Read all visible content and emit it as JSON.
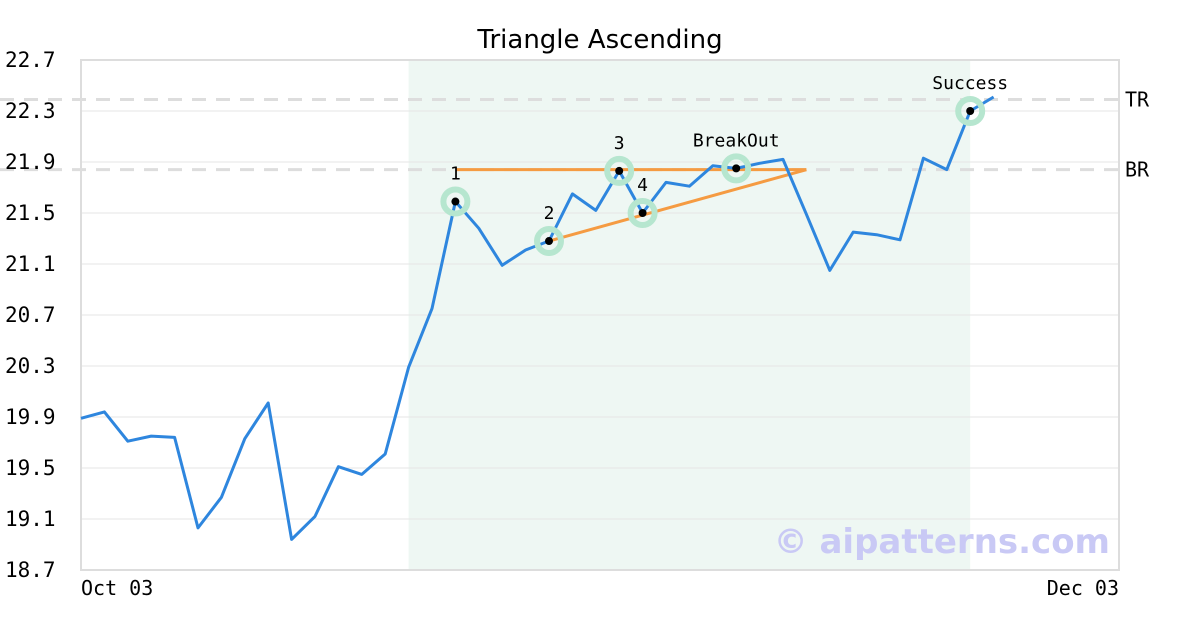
{
  "chart_data": {
    "type": "line",
    "title": "Triangle Ascending",
    "xlabel": "",
    "ylabel": "",
    "ylim": [
      18.7,
      22.7
    ],
    "yticks": [
      "22.7",
      "22.3",
      "21.9",
      "21.5",
      "21.1",
      "20.7",
      "20.3",
      "19.9",
      "19.5",
      "19.1",
      "18.7"
    ],
    "x_tick_labels": [
      "Oct 03",
      "Dec 03"
    ],
    "grid": "horizontal",
    "series": [
      {
        "values": [
          19.89,
          19.94,
          19.71,
          19.75,
          19.74,
          19.03,
          19.27,
          19.73,
          20.01,
          18.94,
          19.12,
          19.51,
          19.45,
          19.61,
          20.29,
          20.75,
          21.59,
          21.38,
          21.09,
          21.21,
          21.28,
          21.65,
          21.52,
          21.83,
          21.5,
          21.74,
          21.71,
          21.87,
          21.85,
          21.89,
          21.92,
          21.49,
          21.05,
          21.35,
          21.33,
          21.29,
          21.93,
          21.84,
          22.3,
          22.41
        ],
        "color": "#2e86de"
      }
    ],
    "pattern_region": {
      "start_index": 14,
      "end_index": 38,
      "color": "#eef7f3"
    },
    "pattern_points": [
      {
        "label": "1",
        "index": 16,
        "value": 21.59
      },
      {
        "label": "2",
        "index": 20,
        "value": 21.28
      },
      {
        "label": "3",
        "index": 23,
        "value": 21.83
      },
      {
        "label": "4",
        "index": 24,
        "value": 21.5
      },
      {
        "label": "BreakOut",
        "index": 28,
        "value": 21.85
      },
      {
        "label": "Success",
        "index": 38,
        "value": 22.3
      }
    ],
    "triangle_lines": [
      {
        "from_index": 16,
        "to_index": 31,
        "from_value": 21.84,
        "to_value": 21.84
      },
      {
        "from_index": 20,
        "to_index": 31,
        "from_value": 21.28,
        "to_value": 21.84
      }
    ],
    "triangle_color": "#f59b42",
    "levels": [
      {
        "label": "TR",
        "value": 22.39
      },
      {
        "label": "BR",
        "value": 21.84
      }
    ],
    "watermark": "© aipatterns.com"
  }
}
